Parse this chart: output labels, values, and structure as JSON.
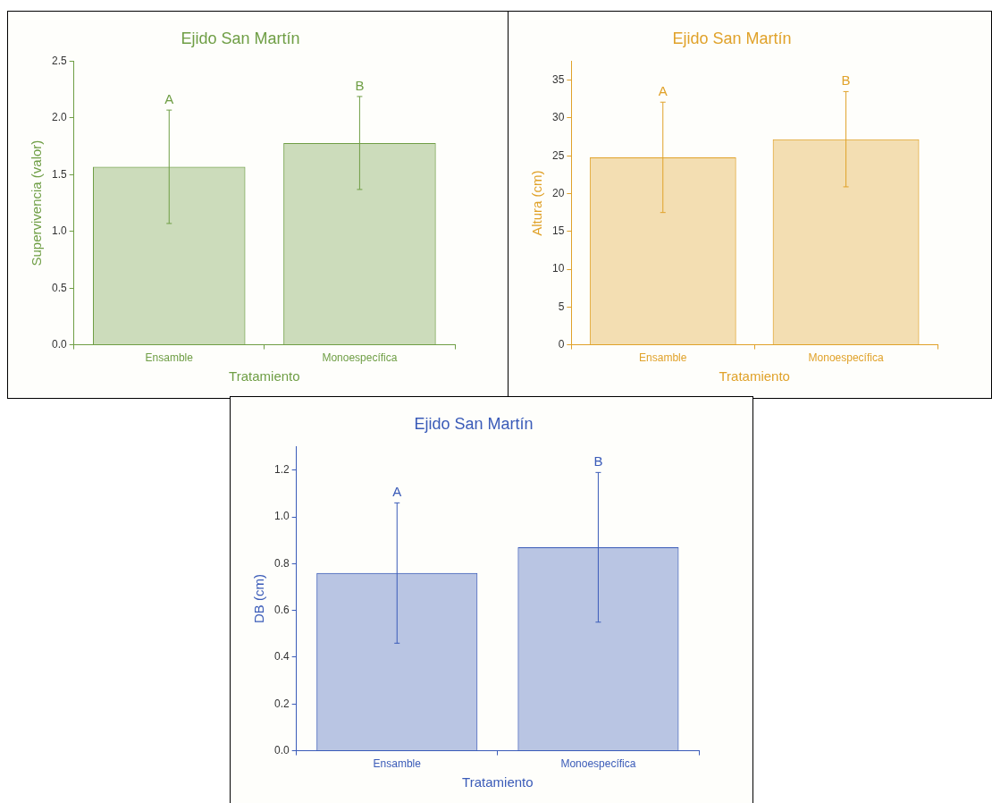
{
  "chart_data": [
    {
      "type": "bar",
      "title": "Ejido San Martín",
      "xlabel": "Tratamiento",
      "ylabel": "Supervivencia (valor)",
      "categories": [
        "Ensamble",
        "Monoespecífica"
      ],
      "values": [
        1.57,
        1.78
      ],
      "errors": [
        0.5,
        0.41
      ],
      "color": "#6f9e45",
      "ylim": [
        0,
        2.5
      ],
      "yticks": [
        {
          "value": 0,
          "label": "0.0"
        },
        0.5,
        {
          "value": 1,
          "label": "1.0"
        },
        1.5,
        {
          "value": 2,
          "label": "2.0"
        },
        2.5
      ],
      "grid": false,
      "annotations": [
        "A",
        "B"
      ]
    },
    {
      "type": "bar",
      "title": "Ejido San Martín",
      "xlabel": "Tratamiento",
      "ylabel": "Altura (cm)",
      "categories": [
        "Ensamble",
        "Monoespecífica"
      ],
      "values": [
        24.8,
        27.2
      ],
      "errors": [
        7.3,
        6.3
      ],
      "color": "#e0a22a",
      "ylim": [
        0,
        37.5
      ],
      "yticks": [
        0,
        5,
        10,
        15,
        20,
        25,
        30,
        35
      ],
      "grid": false,
      "annotations": [
        "A",
        "B"
      ]
    },
    {
      "type": "bar",
      "title": "Ejido San Martín",
      "xlabel": "Tratamiento",
      "ylabel": "DB (cm)",
      "categories": [
        "Ensamble",
        "Monoespecífica"
      ],
      "values": [
        0.76,
        0.87
      ],
      "errors": [
        0.3,
        0.32
      ],
      "color": "#3a5bb8",
      "ylim": [
        0,
        1.3
      ],
      "yticks": [
        {
          "value": 0,
          "label": "0.0"
        },
        0.2,
        0.4,
        0.6,
        0.8,
        {
          "value": 1,
          "label": "1.0"
        },
        1.2
      ],
      "grid": false,
      "annotations": [
        "A",
        "B"
      ]
    }
  ]
}
